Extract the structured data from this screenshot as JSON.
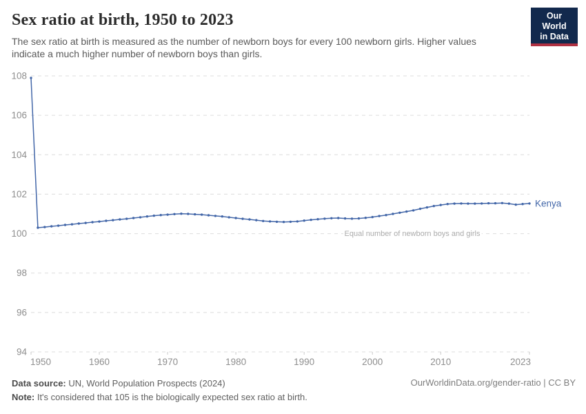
{
  "header": {
    "title": "Sex ratio at birth, 1950 to 2023",
    "subtitle": "The sex ratio at birth is measured as the number of newborn boys for every 100 newborn girls. Higher values indicate a much higher number of newborn boys than girls.",
    "logo": {
      "line1": "Our World",
      "line2": "in Data"
    }
  },
  "chart_data": {
    "type": "line",
    "title": "Sex ratio at birth, 1950 to 2023",
    "xlabel": "",
    "ylabel": "",
    "x_min": 1950,
    "x_max": 2023,
    "ylim": [
      94,
      108
    ],
    "y_ticks": [
      94,
      96,
      98,
      100,
      102,
      104,
      106,
      108
    ],
    "x_ticks": [
      {
        "year": 1950,
        "label": "1950"
      },
      {
        "year": 1960,
        "label": "1960"
      },
      {
        "year": 1970,
        "label": "1970"
      },
      {
        "year": 1980,
        "label": "1980"
      },
      {
        "year": 1990,
        "label": "1990"
      },
      {
        "year": 2000,
        "label": "2000"
      },
      {
        "year": 2010,
        "label": "2010"
      },
      {
        "year": 2023,
        "label": "2023"
      }
    ],
    "grid": true,
    "legend_position": "end-of-line",
    "annotation": {
      "text": "Equal number of newborn boys and girls",
      "value": 100
    },
    "series": [
      {
        "name": "Kenya",
        "color": "#4266a8",
        "points": [
          [
            1950,
            107.9
          ],
          [
            1951,
            100.3
          ],
          [
            1952,
            100.33
          ],
          [
            1953,
            100.37
          ],
          [
            1954,
            100.4
          ],
          [
            1955,
            100.44
          ],
          [
            1956,
            100.47
          ],
          [
            1957,
            100.51
          ],
          [
            1958,
            100.54
          ],
          [
            1959,
            100.58
          ],
          [
            1960,
            100.61
          ],
          [
            1961,
            100.65
          ],
          [
            1962,
            100.68
          ],
          [
            1963,
            100.72
          ],
          [
            1964,
            100.75
          ],
          [
            1965,
            100.79
          ],
          [
            1966,
            100.83
          ],
          [
            1967,
            100.87
          ],
          [
            1968,
            100.91
          ],
          [
            1969,
            100.94
          ],
          [
            1970,
            100.96
          ],
          [
            1971,
            100.99
          ],
          [
            1972,
            101.01
          ],
          [
            1973,
            101.0
          ],
          [
            1974,
            100.98
          ],
          [
            1975,
            100.96
          ],
          [
            1976,
            100.93
          ],
          [
            1977,
            100.9
          ],
          [
            1978,
            100.87
          ],
          [
            1979,
            100.83
          ],
          [
            1980,
            100.79
          ],
          [
            1981,
            100.75
          ],
          [
            1982,
            100.72
          ],
          [
            1983,
            100.68
          ],
          [
            1984,
            100.64
          ],
          [
            1985,
            100.62
          ],
          [
            1986,
            100.6
          ],
          [
            1987,
            100.59
          ],
          [
            1988,
            100.6
          ],
          [
            1989,
            100.62
          ],
          [
            1990,
            100.66
          ],
          [
            1991,
            100.7
          ],
          [
            1992,
            100.73
          ],
          [
            1993,
            100.76
          ],
          [
            1994,
            100.78
          ],
          [
            1995,
            100.79
          ],
          [
            1996,
            100.77
          ],
          [
            1997,
            100.76
          ],
          [
            1998,
            100.77
          ],
          [
            1999,
            100.8
          ],
          [
            2000,
            100.84
          ],
          [
            2001,
            100.89
          ],
          [
            2002,
            100.94
          ],
          [
            2003,
            101.0
          ],
          [
            2004,
            101.06
          ],
          [
            2005,
            101.12
          ],
          [
            2006,
            101.18
          ],
          [
            2007,
            101.26
          ],
          [
            2008,
            101.33
          ],
          [
            2009,
            101.4
          ],
          [
            2010,
            101.45
          ],
          [
            2011,
            101.5
          ],
          [
            2012,
            101.52
          ],
          [
            2013,
            101.53
          ],
          [
            2014,
            101.52
          ],
          [
            2015,
            101.52
          ],
          [
            2016,
            101.53
          ],
          [
            2017,
            101.54
          ],
          [
            2018,
            101.54
          ],
          [
            2019,
            101.55
          ],
          [
            2020,
            101.52
          ],
          [
            2021,
            101.47
          ],
          [
            2022,
            101.5
          ],
          [
            2023,
            101.53
          ]
        ]
      }
    ]
  },
  "footer": {
    "source_label": "Data source:",
    "source_text": " UN, World Population Prospects (2024)",
    "note_label": "Note:",
    "note_text": " It's considered that 105 is the biologically expected sex ratio at birth.",
    "link": "OurWorldinData.org/gender-ratio",
    "license": " | CC BY"
  },
  "colors": {
    "line": "#4266a8",
    "grid": "#dcdcdc",
    "tick_label": "#8e8e8e",
    "tick_mark": "#c9c9c9",
    "annotation": "#ababab",
    "logo_bg": "#12294d",
    "logo_stripe": "#b03142"
  }
}
